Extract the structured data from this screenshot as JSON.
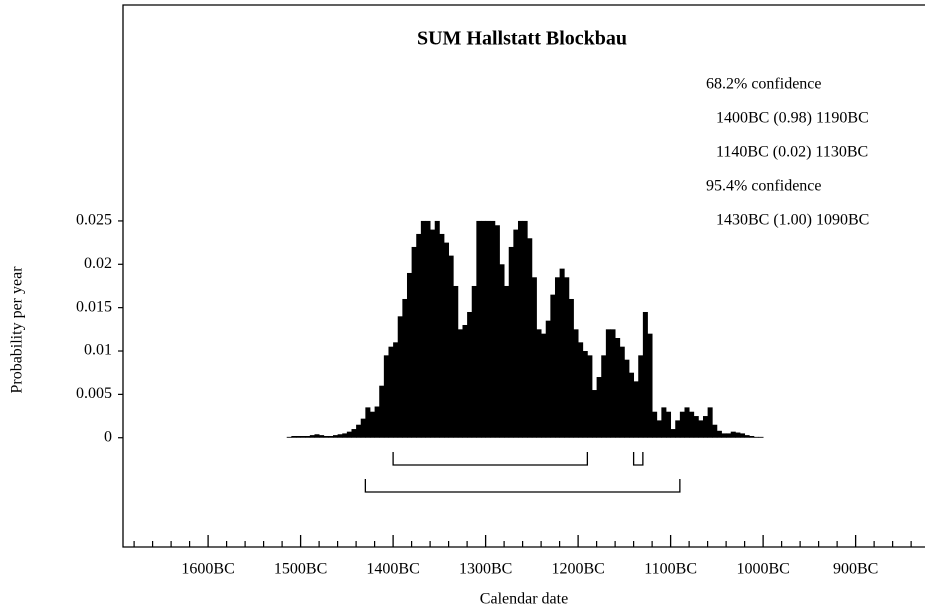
{
  "chart_data": {
    "type": "histogram",
    "title": "SUM Hallstatt Blockbau",
    "x_label": "Calendar date",
    "y_label": "Probability per year",
    "color": "#000000",
    "xlim": [
      1692,
      825
    ],
    "ylim": [
      -0.0126,
      0.0499
    ],
    "xticks": [
      {
        "value": 1600,
        "label": "1600BC"
      },
      {
        "value": 1500,
        "label": "1500BC"
      },
      {
        "value": 1400,
        "label": "1400BC"
      },
      {
        "value": 1300,
        "label": "1300BC"
      },
      {
        "value": 1200,
        "label": "1200BC"
      },
      {
        "value": 1100,
        "label": "1100BC"
      },
      {
        "value": 1000,
        "label": "1000BC"
      },
      {
        "value": 900,
        "label": "900BC"
      }
    ],
    "xminorticks": [
      1680,
      1660,
      1640,
      1620,
      1580,
      1560,
      1540,
      1520,
      1480,
      1460,
      1440,
      1420,
      1380,
      1360,
      1340,
      1320,
      1280,
      1260,
      1240,
      1220,
      1180,
      1160,
      1140,
      1120,
      1080,
      1060,
      1040,
      1020,
      980,
      960,
      940,
      920,
      880,
      860,
      840
    ],
    "yticks": [
      0,
      0.005,
      0.01,
      0.015,
      0.02,
      0.025
    ],
    "bins": [
      1515,
      1510,
      1505,
      1500,
      1495,
      1490,
      1485,
      1480,
      1475,
      1470,
      1465,
      1460,
      1455,
      1450,
      1445,
      1440,
      1435,
      1430,
      1425,
      1420,
      1415,
      1410,
      1405,
      1400,
      1395,
      1390,
      1385,
      1380,
      1375,
      1370,
      1365,
      1360,
      1355,
      1350,
      1345,
      1340,
      1335,
      1330,
      1325,
      1320,
      1315,
      1310,
      1305,
      1300,
      1295,
      1290,
      1285,
      1280,
      1275,
      1270,
      1265,
      1260,
      1255,
      1250,
      1245,
      1240,
      1235,
      1230,
      1225,
      1220,
      1215,
      1210,
      1205,
      1200,
      1195,
      1190,
      1185,
      1180,
      1175,
      1170,
      1165,
      1160,
      1155,
      1150,
      1145,
      1140,
      1135,
      1130,
      1125,
      1120,
      1115,
      1110,
      1105,
      1100,
      1095,
      1090,
      1085,
      1080,
      1075,
      1070,
      1065,
      1060,
      1055,
      1050,
      1045,
      1040,
      1035,
      1030,
      1025,
      1020,
      1015,
      1010,
      1005,
      1000
    ],
    "values": [
      0.0001,
      0.0002,
      0.0002,
      0.0002,
      0.0002,
      0.0003,
      0.0004,
      0.0003,
      0.0002,
      0.0002,
      0.0003,
      0.0004,
      0.0005,
      0.0007,
      0.001,
      0.0015,
      0.0022,
      0.0035,
      0.003,
      0.0036,
      0.006,
      0.0095,
      0.0105,
      0.011,
      0.014,
      0.016,
      0.019,
      0.022,
      0.0235,
      0.025,
      0.025,
      0.024,
      0.025,
      0.0235,
      0.0225,
      0.021,
      0.0175,
      0.0125,
      0.013,
      0.0145,
      0.0175,
      0.025,
      0.025,
      0.025,
      0.025,
      0.0245,
      0.02,
      0.0175,
      0.022,
      0.024,
      0.025,
      0.025,
      0.023,
      0.0185,
      0.0125,
      0.012,
      0.0135,
      0.0165,
      0.0185,
      0.0195,
      0.0185,
      0.016,
      0.0125,
      0.011,
      0.01,
      0.0095,
      0.0055,
      0.007,
      0.0095,
      0.0125,
      0.0125,
      0.0115,
      0.0105,
      0.009,
      0.0075,
      0.0065,
      0.0095,
      0.0145,
      0.012,
      0.003,
      0.002,
      0.0035,
      0.003,
      0.001,
      0.002,
      0.003,
      0.0035,
      0.003,
      0.0025,
      0.002,
      0.0025,
      0.0035,
      0.0015,
      0.0008,
      0.0005,
      0.0005,
      0.0007,
      0.0006,
      0.0005,
      0.0003,
      0.0002,
      0.0001,
      0.0001
    ],
    "ranges": [
      {
        "label": "68.2% confidence",
        "intervals": [
          {
            "from": 1400,
            "to": 1190,
            "text": "1400BC (0.98) 1190BC"
          },
          {
            "from": 1140,
            "to": 1130,
            "text": "1140BC (0.02) 1130BC"
          }
        ]
      },
      {
        "label": "95.4% confidence",
        "intervals": [
          {
            "from": 1430,
            "to": 1090,
            "text": "1430BC (1.00) 1090BC"
          }
        ]
      }
    ]
  }
}
